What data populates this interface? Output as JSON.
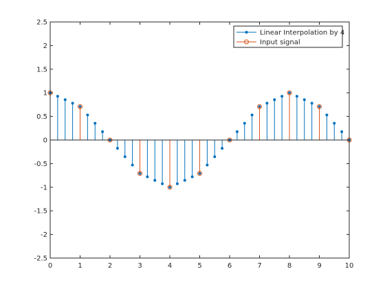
{
  "chart_data": {
    "type": "stem",
    "title": "",
    "xlabel": "",
    "ylabel": "",
    "xlim": [
      0,
      10
    ],
    "ylim": [
      -2.5,
      2.5
    ],
    "xticks": [
      0,
      1,
      2,
      3,
      4,
      5,
      6,
      7,
      8,
      9,
      10
    ],
    "yticks": [
      -2.5,
      -2,
      -1.5,
      -1,
      -0.5,
      0,
      0.5,
      1,
      1.5,
      2,
      2.5
    ],
    "xtick_labels": [
      "0",
      "1",
      "2",
      "3",
      "4",
      "5",
      "6",
      "7",
      "8",
      "9",
      "10"
    ],
    "ytick_labels": [
      "-2.5",
      "-2",
      "-1.5",
      "-1",
      "-0.5",
      "0",
      "0.5",
      "1",
      "1.5",
      "2",
      "2.5"
    ],
    "grid": false,
    "legend_position": "top-right",
    "series": [
      {
        "name": "Linear Interpolation by 4",
        "color": "#0072bd",
        "marker": "dot",
        "x": [
          0,
          0.25,
          0.5,
          0.75,
          1,
          1.25,
          1.5,
          1.75,
          2,
          2.25,
          2.5,
          2.75,
          3,
          3.25,
          3.5,
          3.75,
          4,
          4.25,
          4.5,
          4.75,
          5,
          5.25,
          5.5,
          5.75,
          6,
          6.25,
          6.5,
          6.75,
          7,
          7.25,
          7.5,
          7.75,
          8,
          8.25,
          8.5,
          8.75,
          9,
          9.25,
          9.5,
          9.75,
          10
        ],
        "values": [
          1,
          0.927,
          0.854,
          0.78,
          0.707,
          0.53,
          0.354,
          0.177,
          0,
          -0.177,
          -0.354,
          -0.53,
          -0.707,
          -0.78,
          -0.854,
          -0.927,
          -1,
          -0.927,
          -0.854,
          -0.78,
          -0.707,
          -0.53,
          -0.354,
          -0.177,
          0,
          0.177,
          0.354,
          0.53,
          0.707,
          0.78,
          0.854,
          0.927,
          1,
          0.927,
          0.854,
          0.78,
          0.707,
          0.53,
          0.354,
          0.177,
          0
        ]
      },
      {
        "name": "Input signal",
        "color": "#d95319",
        "marker": "circle",
        "x": [
          0,
          1,
          2,
          3,
          4,
          5,
          6,
          7,
          8,
          9,
          10
        ],
        "values": [
          1,
          0.707,
          0,
          -0.707,
          -1,
          -0.707,
          0,
          0.707,
          1,
          0.707,
          0
        ]
      }
    ]
  }
}
